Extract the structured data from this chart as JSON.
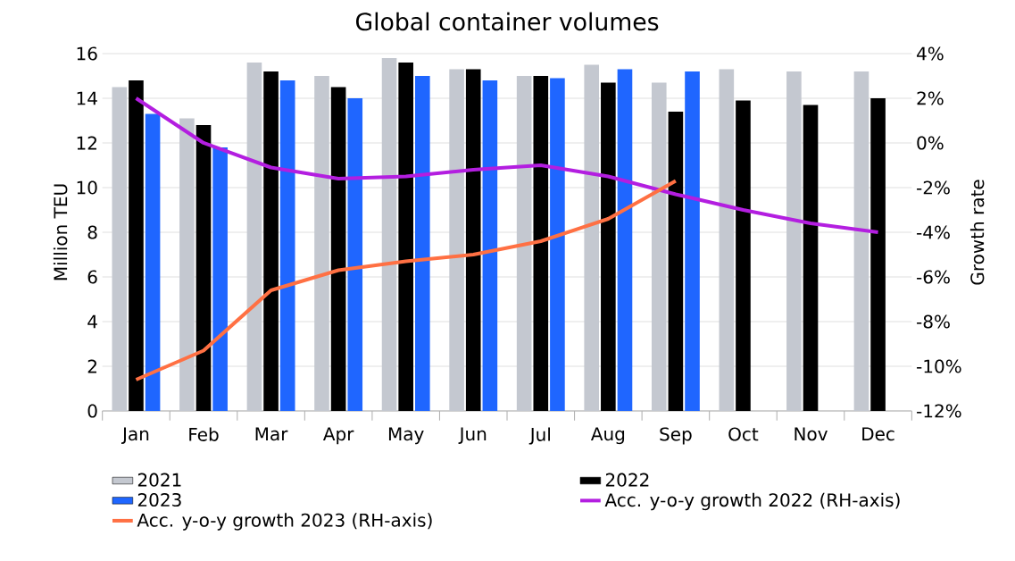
{
  "chart_data": {
    "type": "bar",
    "title": "Global container volumes",
    "ylabel": "Million TEU",
    "y2label": "Growth rate",
    "categories": [
      "Jan",
      "Feb",
      "Mar",
      "Apr",
      "May",
      "Jun",
      "Jul",
      "Aug",
      "Sep",
      "Oct",
      "Nov",
      "Dec"
    ],
    "series": [
      {
        "name": "2021",
        "color": "#c4c8d0",
        "values": [
          14.5,
          13.1,
          15.6,
          15.0,
          15.8,
          15.3,
          15.0,
          15.5,
          14.7,
          15.3,
          15.2,
          15.2
        ]
      },
      {
        "name": "2022",
        "color": "#000000",
        "values": [
          14.8,
          12.8,
          15.2,
          14.5,
          15.6,
          15.3,
          15.0,
          14.7,
          13.4,
          13.9,
          13.7,
          14.0
        ]
      },
      {
        "name": "2023",
        "color": "#1f66ff",
        "values": [
          13.3,
          11.8,
          14.8,
          14.0,
          15.0,
          14.8,
          14.9,
          15.3,
          15.2,
          null,
          null,
          null
        ]
      },
      {
        "name": "Acc. y-o-y growth 2022 (RH-axis)",
        "type": "line",
        "axis": "y2",
        "color": "#b31ee0",
        "values": [
          2.0,
          0.0,
          -1.1,
          -1.6,
          -1.5,
          -1.2,
          -1.0,
          -1.5,
          -2.3,
          -3.0,
          -3.6,
          -4.0
        ]
      },
      {
        "name": "Acc. y-o-y growth 2023 (RH-axis)",
        "type": "line",
        "axis": "y2",
        "color": "#ff7043",
        "values": [
          -10.6,
          -9.3,
          -6.6,
          -5.7,
          -5.3,
          -5.0,
          -4.4,
          -3.4,
          -1.7,
          null,
          null,
          null
        ]
      }
    ],
    "ylim": [
      0,
      16
    ],
    "yticks": [
      0,
      2,
      4,
      6,
      8,
      10,
      12,
      14,
      16
    ],
    "y2lim": [
      -12,
      4
    ],
    "y2ticks": [
      {
        "value": -12,
        "label": "-12%"
      },
      {
        "value": -10,
        "label": "-10%"
      },
      {
        "value": -8,
        "label": "-8%"
      },
      {
        "value": -6,
        "label": "-6%"
      },
      {
        "value": -4,
        "label": "-4%"
      },
      {
        "value": -2,
        "label": "-2%"
      },
      {
        "value": 0,
        "label": "0%"
      },
      {
        "value": 2,
        "label": "2%"
      },
      {
        "value": 4,
        "label": "4%"
      }
    ],
    "grid": "y",
    "legend": "bottom"
  }
}
